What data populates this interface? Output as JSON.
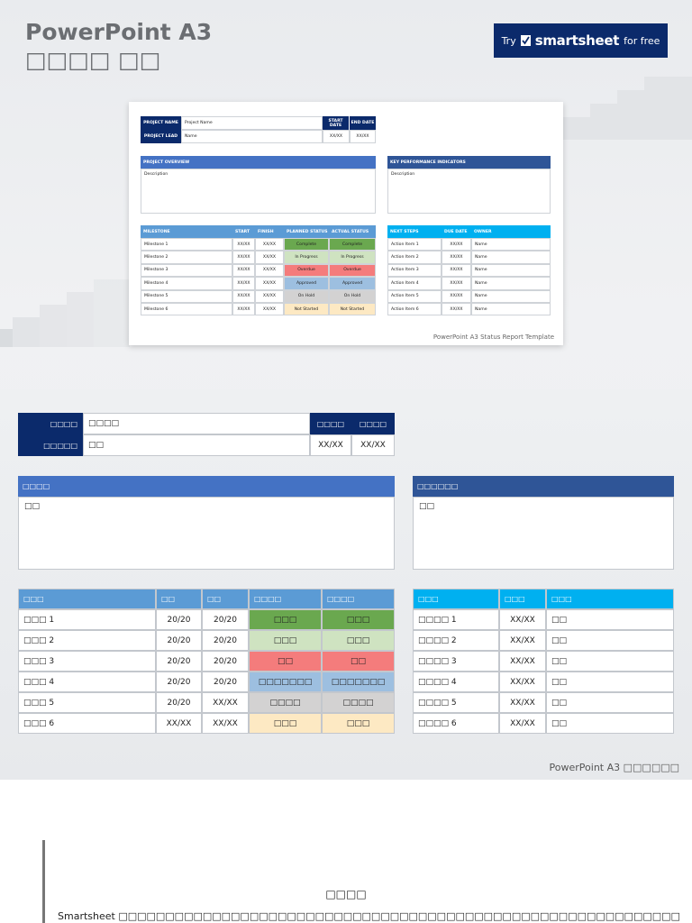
{
  "page_title": "PowerPoint A3 □□□□ □□",
  "cta": {
    "try": "Try",
    "brand": "smartsheet",
    "suffix": "for free"
  },
  "thumbnail": {
    "project_name_label": "PROJECT NAME",
    "project_name_value": "Project Name",
    "project_lead_label": "PROJECT LEAD",
    "project_lead_value": "Name",
    "start_date_label": "START DATE",
    "end_date_label": "END DATE",
    "start_value": "XX/XX",
    "end_value": "XX/XX",
    "overview_header": "PROJECT OVERVIEW",
    "overview_desc": "Description",
    "kpi_header": "KEY PERFORMANCE INDICATORS",
    "kpi_desc": "Description",
    "milestone_headers": [
      "MILESTONE",
      "START",
      "FINISH",
      "PLANNED STATUS",
      "ACTUAL STATUS"
    ],
    "milestones": [
      {
        "name": "Milestone 1",
        "start": "XX/XX",
        "finish": "XX/XX",
        "planned": "Complete",
        "actual": "Complete"
      },
      {
        "name": "Milestone 2",
        "start": "XX/XX",
        "finish": "XX/XX",
        "planned": "In Progress",
        "actual": "In Progress"
      },
      {
        "name": "Milestone 3",
        "start": "XX/XX",
        "finish": "XX/XX",
        "planned": "Overdue",
        "actual": "Overdue"
      },
      {
        "name": "Milestone 4",
        "start": "XX/XX",
        "finish": "XX/XX",
        "planned": "Approved",
        "actual": "Approved"
      },
      {
        "name": "Milestone 5",
        "start": "XX/XX",
        "finish": "XX/XX",
        "planned": "On Hold",
        "actual": "On Hold"
      },
      {
        "name": "Milestone 6",
        "start": "XX/XX",
        "finish": "XX/XX",
        "planned": "Not Started",
        "actual": "Not Started"
      }
    ],
    "next_headers": [
      "NEXT STEPS",
      "DUE DATE",
      "OWNER"
    ],
    "next_steps": [
      {
        "item": "Action Item 1",
        "due": "XX/XX",
        "owner": "Name"
      },
      {
        "item": "Action Item 2",
        "due": "XX/XX",
        "owner": "Name"
      },
      {
        "item": "Action Item 3",
        "due": "XX/XX",
        "owner": "Name"
      },
      {
        "item": "Action Item 4",
        "due": "XX/XX",
        "owner": "Name"
      },
      {
        "item": "Action Item 5",
        "due": "XX/XX",
        "owner": "Name"
      },
      {
        "item": "Action Item 6",
        "due": "XX/XX",
        "owner": "Name"
      }
    ],
    "caption": "PowerPoint A3 Status Report Template"
  },
  "main": {
    "project_name_label": "□□□□",
    "project_name_value": "□□□□",
    "project_lead_label": "□□□□□",
    "project_lead_value": "□□",
    "start_label": "□□□□",
    "end_label": "□□□□",
    "start_value": "XX/XX",
    "end_value": "XX/XX",
    "overview_header": "□□□□",
    "overview_desc": "□□",
    "kpi_header": "□□□□□□",
    "kpi_desc": "□□",
    "milestone_headers": [
      "□□□",
      "□□",
      "□□",
      "□□□□",
      "□□□□"
    ],
    "milestones": [
      {
        "name": "□□□ 1",
        "start": "20/20",
        "finish": "20/20",
        "planned": "□□□",
        "actual": "□□□"
      },
      {
        "name": "□□□ 2",
        "start": "20/20",
        "finish": "20/20",
        "planned": "□□□",
        "actual": "□□□"
      },
      {
        "name": "□□□ 3",
        "start": "20/20",
        "finish": "20/20",
        "planned": "□□",
        "actual": "□□"
      },
      {
        "name": "□□□ 4",
        "start": "20/20",
        "finish": "20/20",
        "planned": "□□□□□□□",
        "actual": "□□□□□□□"
      },
      {
        "name": "□□□ 5",
        "start": "20/20",
        "finish": "XX/XX",
        "planned": "□□□□",
        "actual": "□□□□"
      },
      {
        "name": "□□□ 6",
        "start": "XX/XX",
        "finish": "XX/XX",
        "planned": "□□□",
        "actual": "□□□"
      }
    ],
    "next_headers": [
      "□□□",
      "□□□",
      "□□□"
    ],
    "next_steps": [
      {
        "item": "□□□□ 1",
        "due": "XX/XX",
        "owner": "□□"
      },
      {
        "item": "□□□□ 2",
        "due": "XX/XX",
        "owner": "□□"
      },
      {
        "item": "□□□□ 3",
        "due": "XX/XX",
        "owner": "□□"
      },
      {
        "item": "□□□□ 4",
        "due": "XX/XX",
        "owner": "□□"
      },
      {
        "item": "□□□□ 5",
        "due": "XX/XX",
        "owner": "□□"
      },
      {
        "item": "□□□□ 6",
        "due": "XX/XX",
        "owner": "□□"
      }
    ]
  },
  "status_colors": {
    "complete": "#6aa84f",
    "in_progress": "#cfe3c1",
    "overdue": "#f47c7c",
    "approved": "#9dbfe0",
    "on_hold": "#d3d2d2",
    "not_started": "#fde9c3"
  },
  "colors": {
    "navy": "#0b2a6b",
    "overview_blue": "#4472c4",
    "kpi_blue": "#2f5597",
    "milestone_header": "#5b9bd5",
    "next_header": "#00b0f0"
  },
  "caption": "PowerPoint A3 □□□□□□",
  "note": {
    "title": "□□□□",
    "body": "Smartsheet □□□□□□□□□□□□□□□□□□□□□□□□□□□□□□□□□□□□□□□□□□□□□□□□□□□□□□□□□□□□□□□□□□□□□□□□□□□□□□"
  }
}
